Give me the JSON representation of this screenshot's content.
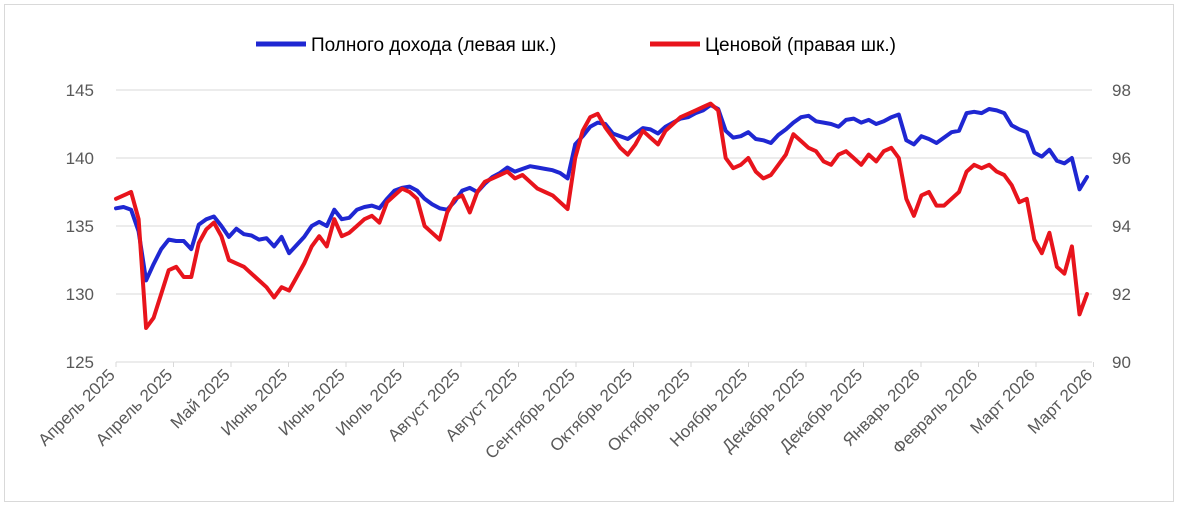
{
  "chart_data": {
    "type": "line",
    "legend_position": "top",
    "grid": true,
    "x_tick_labels": [
      "Апрель 2025",
      "Апрель 2025",
      "Май 2025",
      "Июнь 2025",
      "Июнь 2025",
      "Июль 2025",
      "Август 2025",
      "Август 2025",
      "Сентябрь 2025",
      "Октябрь 2025",
      "Октябрь 2025",
      "Ноябрь 2025",
      "Декабрь 2025",
      "Декабрь 2025",
      "Январь 2026",
      "Февраль 2026",
      "Март 2026",
      "Март 2026"
    ],
    "y_left": {
      "lim": [
        125,
        145
      ],
      "ticks": [
        "125",
        "130",
        "135",
        "140",
        "145"
      ]
    },
    "y_right": {
      "lim": [
        90,
        98
      ],
      "ticks": [
        "90",
        "92",
        "94",
        "96",
        "98"
      ]
    },
    "series": [
      {
        "name": "Полного дохода (левая шк.)",
        "axis": "left",
        "color": "#1f27d2",
        "values": [
          136.3,
          136.4,
          136.2,
          134.6,
          131.0,
          132.2,
          133.3,
          134.0,
          133.9,
          133.9,
          133.3,
          135.1,
          135.5,
          135.7,
          135.0,
          134.2,
          134.8,
          134.4,
          134.3,
          134.0,
          134.1,
          133.5,
          134.2,
          133.0,
          133.6,
          134.2,
          135.0,
          135.3,
          135.0,
          136.2,
          135.5,
          135.6,
          136.2,
          136.4,
          136.5,
          136.3,
          137.0,
          137.6,
          137.8,
          137.9,
          137.6,
          137.0,
          136.6,
          136.3,
          136.2,
          136.8,
          137.6,
          137.8,
          137.5,
          138.1,
          138.6,
          138.9,
          139.3,
          139.0,
          139.2,
          139.4,
          139.3,
          139.2,
          139.1,
          138.9,
          138.5,
          141.0,
          141.6,
          142.3,
          142.6,
          142.5,
          141.8,
          141.6,
          141.4,
          141.8,
          142.2,
          142.1,
          141.8,
          142.3,
          142.6,
          142.9,
          143.0,
          143.3,
          143.5,
          143.9,
          143.6,
          142.0,
          141.5,
          141.6,
          141.9,
          141.4,
          141.3,
          141.1,
          141.7,
          142.1,
          142.6,
          143.0,
          143.1,
          142.7,
          142.6,
          142.5,
          142.3,
          142.8,
          142.9,
          142.6,
          142.8,
          142.5,
          142.7,
          143.0,
          143.2,
          141.3,
          141.0,
          141.6,
          141.4,
          141.1,
          141.5,
          141.9,
          142.0,
          143.3,
          143.4,
          143.3,
          143.6,
          143.5,
          143.3,
          142.4,
          142.1,
          141.9,
          140.4,
          140.1,
          140.6,
          139.8,
          139.6,
          140.0,
          137.7,
          138.6
        ]
      },
      {
        "name": "Ценовой (правая шк.)",
        "axis": "right",
        "color": "#e8141c",
        "values": [
          94.8,
          94.9,
          95.0,
          94.2,
          91.0,
          91.3,
          92.0,
          92.7,
          92.8,
          92.5,
          92.5,
          93.5,
          93.9,
          94.1,
          93.7,
          93.0,
          92.9,
          92.8,
          92.6,
          92.4,
          92.2,
          91.9,
          92.2,
          92.1,
          92.5,
          92.9,
          93.4,
          93.7,
          93.4,
          94.2,
          93.7,
          93.8,
          94.0,
          94.2,
          94.3,
          94.1,
          94.7,
          94.9,
          95.1,
          95.0,
          94.8,
          94.0,
          93.8,
          93.6,
          94.4,
          94.8,
          94.9,
          94.4,
          95.0,
          95.3,
          95.4,
          95.5,
          95.6,
          95.4,
          95.5,
          95.3,
          95.1,
          95.0,
          94.9,
          94.7,
          94.5,
          96.0,
          96.8,
          97.2,
          97.3,
          96.9,
          96.6,
          96.3,
          96.1,
          96.4,
          96.8,
          96.6,
          96.4,
          96.8,
          97.0,
          97.2,
          97.3,
          97.4,
          97.5,
          97.6,
          97.4,
          96.0,
          95.7,
          95.8,
          96.0,
          95.6,
          95.4,
          95.5,
          95.8,
          96.1,
          96.7,
          96.5,
          96.3,
          96.2,
          95.9,
          95.8,
          96.1,
          96.2,
          96.0,
          95.8,
          96.1,
          95.9,
          96.2,
          96.3,
          96.0,
          94.8,
          94.3,
          94.9,
          95.0,
          94.6,
          94.6,
          94.8,
          95.0,
          95.6,
          95.8,
          95.7,
          95.8,
          95.6,
          95.5,
          95.2,
          94.7,
          94.8,
          93.6,
          93.2,
          93.8,
          92.8,
          92.6,
          93.4,
          91.4,
          92.0
        ]
      }
    ]
  }
}
